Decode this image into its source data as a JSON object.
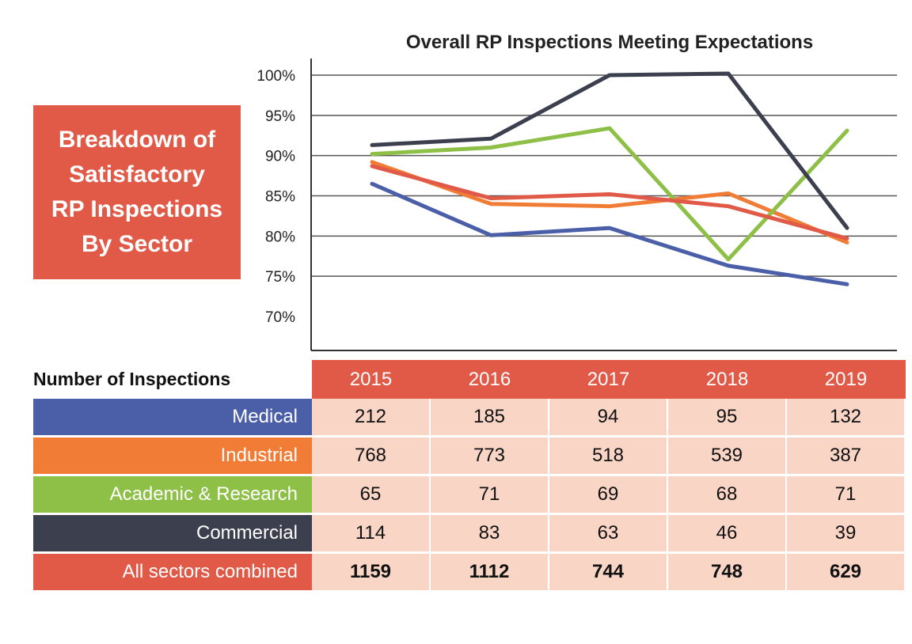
{
  "side_title": "Breakdown of\nSatisfactory\nRP Inspections\nBy Sector",
  "colors": {
    "accent": "#e05a47",
    "medical": "#4a5fa8",
    "industrial": "#f07c35",
    "academic": "#8ebf47",
    "commercial": "#3c3f4e",
    "combined": "#e05a47",
    "cell": "#f9d5c6"
  },
  "chart_data": {
    "type": "line",
    "title": "Overall RP Inspections Meeting Expectations",
    "x": [
      "2015",
      "2016",
      "2017",
      "2018",
      "2019"
    ],
    "ylim": [
      0.66,
      1.01
    ],
    "y_ticks": [
      "100%",
      "95%",
      "90%",
      "85%",
      "80%",
      "75%",
      "70%"
    ],
    "y_tick_values": [
      1.0,
      0.95,
      0.9,
      0.85,
      0.8,
      0.75,
      0.7
    ],
    "grid": true,
    "series": [
      {
        "color": "#4a5fa8",
        "values": [
          0.865,
          0.801,
          0.81,
          0.763,
          0.74
        ]
      },
      {
        "color": "#f07c35",
        "values": [
          0.892,
          0.84,
          0.837,
          0.853,
          0.792
        ]
      },
      {
        "color": "#8ebf47",
        "values": [
          0.902,
          0.91,
          0.934,
          0.771,
          0.931
        ]
      },
      {
        "color": "#3c3f4e",
        "values": [
          0.913,
          0.921,
          1.0,
          1.002,
          0.81
        ]
      },
      {
        "color": "#e05a47",
        "values": [
          0.887,
          0.847,
          0.852,
          0.837,
          0.797
        ]
      }
    ]
  },
  "table": {
    "header_label": "Number of Inspections",
    "years": [
      "2015",
      "2016",
      "2017",
      "2018",
      "2019"
    ],
    "rows": [
      {
        "label": "Medical",
        "color": "#4a5fa8",
        "values": [
          "212",
          "185",
          "94",
          "95",
          "132"
        ],
        "bold": false
      },
      {
        "label": "Industrial",
        "color": "#f07c35",
        "values": [
          "768",
          "773",
          "518",
          "539",
          "387"
        ],
        "bold": false
      },
      {
        "label": "Academic & Research",
        "color": "#8ebf47",
        "values": [
          "65",
          "71",
          "69",
          "68",
          "71"
        ],
        "bold": false
      },
      {
        "label": "Commercial",
        "color": "#3c3f4e",
        "values": [
          "114",
          "83",
          "63",
          "46",
          "39"
        ],
        "bold": false
      },
      {
        "label": "All sectors combined",
        "color": "#e05a47",
        "values": [
          "1159",
          "1112",
          "744",
          "748",
          "629"
        ],
        "bold": true
      }
    ]
  }
}
